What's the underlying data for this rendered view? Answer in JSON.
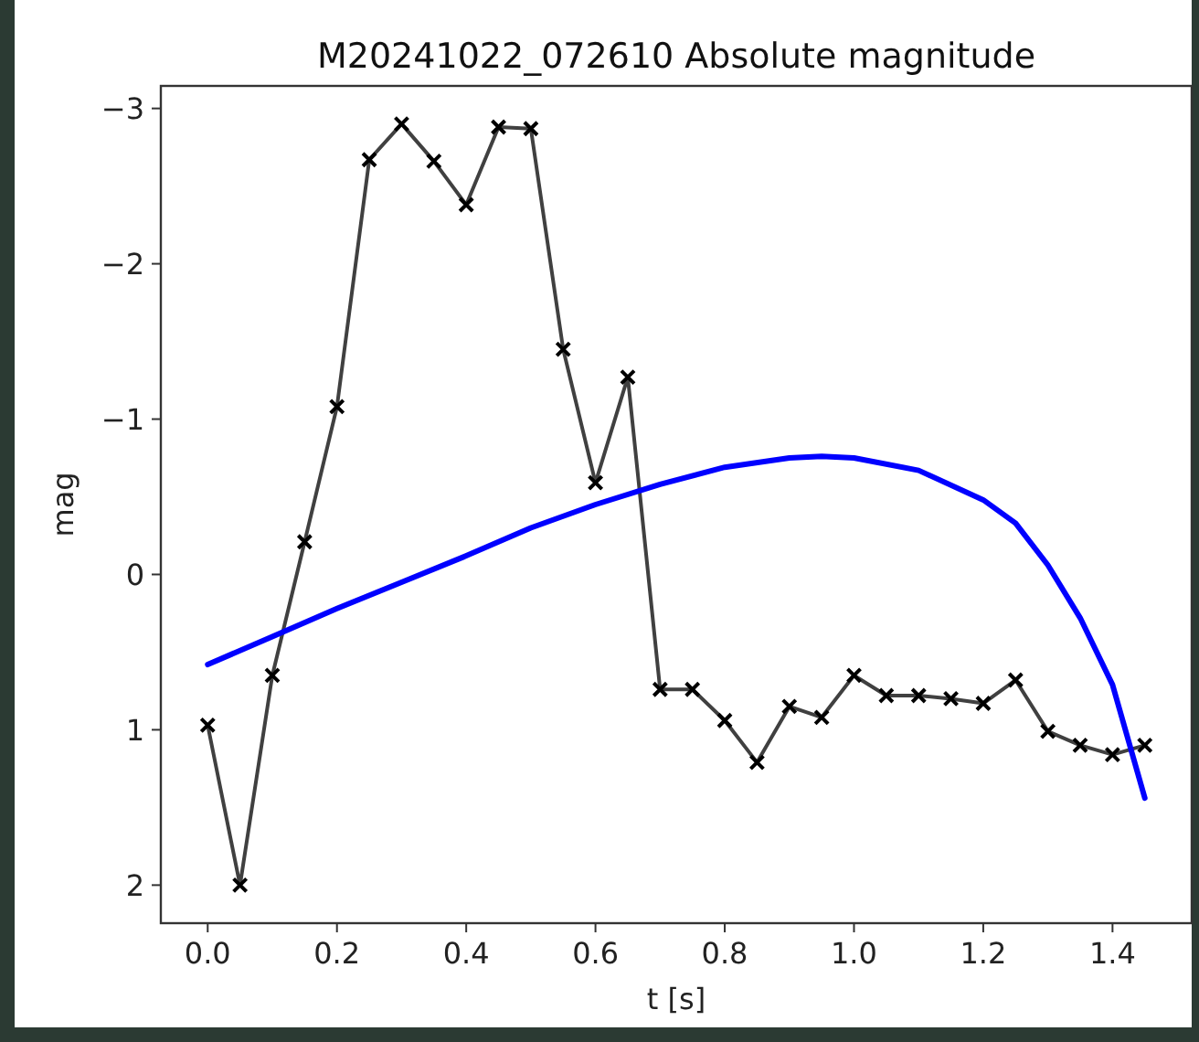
{
  "chart_data": {
    "type": "line",
    "title": "M20241022_072610 Absolute magnitude",
    "xlabel": "t [s]",
    "ylabel": "mag",
    "xlim": [
      -0.0725,
      1.5225
    ],
    "xticks": [
      {
        "value": 0,
        "label": "0.0"
      },
      {
        "value": 0.2,
        "label": "0.2"
      },
      {
        "value": 0.4,
        "label": "0.4"
      },
      {
        "value": 0.6,
        "label": "0.6"
      },
      {
        "value": 0.8,
        "label": "0.8"
      },
      {
        "value": 1,
        "label": "1.0"
      },
      {
        "value": 1.2,
        "label": "1.2"
      },
      {
        "value": 1.4,
        "label": "1.4"
      }
    ],
    "ylim": [
      2.245,
      -3.145
    ],
    "yticks": [
      {
        "value": 2,
        "label": "2"
      },
      {
        "value": 1,
        "label": "1"
      },
      {
        "value": 0,
        "label": "0"
      },
      {
        "value": -1,
        "label": "−1"
      },
      {
        "value": -2,
        "label": "−2"
      },
      {
        "value": -3,
        "label": "−3"
      }
    ],
    "grid": false,
    "series": [
      {
        "color": "#404040",
        "marker": "cross",
        "line_style": "solid",
        "x": [
          0,
          0.05,
          0.1,
          0.15,
          0.2,
          0.25,
          0.3,
          0.35,
          0.4,
          0.45,
          0.5,
          0.55,
          0.6,
          0.65,
          0.7,
          0.75,
          0.8,
          0.85,
          0.9,
          0.95,
          1.0,
          1.05,
          1.1,
          1.15,
          1.2,
          1.25,
          1.3,
          1.35,
          1.4,
          1.45
        ],
        "values": [
          0.97,
          2.0,
          0.65,
          -0.21,
          -1.08,
          -2.67,
          -2.9,
          -2.66,
          -2.38,
          -2.88,
          -2.87,
          -1.45,
          -0.59,
          -1.27,
          0.74,
          0.74,
          0.94,
          1.21,
          0.85,
          0.92,
          0.65,
          0.78,
          0.78,
          0.8,
          0.83,
          0.68,
          1.01,
          1.1,
          1.16,
          1.1
        ]
      },
      {
        "color": "#0000ff",
        "marker": "none",
        "line_style": "solid",
        "x": [
          0,
          0.1,
          0.2,
          0.3,
          0.4,
          0.5,
          0.6,
          0.7,
          0.8,
          0.9,
          0.95,
          1.0,
          1.1,
          1.2,
          1.25,
          1.3,
          1.35,
          1.4,
          1.45
        ],
        "values": [
          0.58,
          0.4,
          0.22,
          0.05,
          -0.12,
          -0.3,
          -0.45,
          -0.58,
          -0.69,
          -0.75,
          -0.76,
          -0.75,
          -0.67,
          -0.48,
          -0.33,
          -0.06,
          0.28,
          0.71,
          1.44
        ]
      }
    ]
  }
}
